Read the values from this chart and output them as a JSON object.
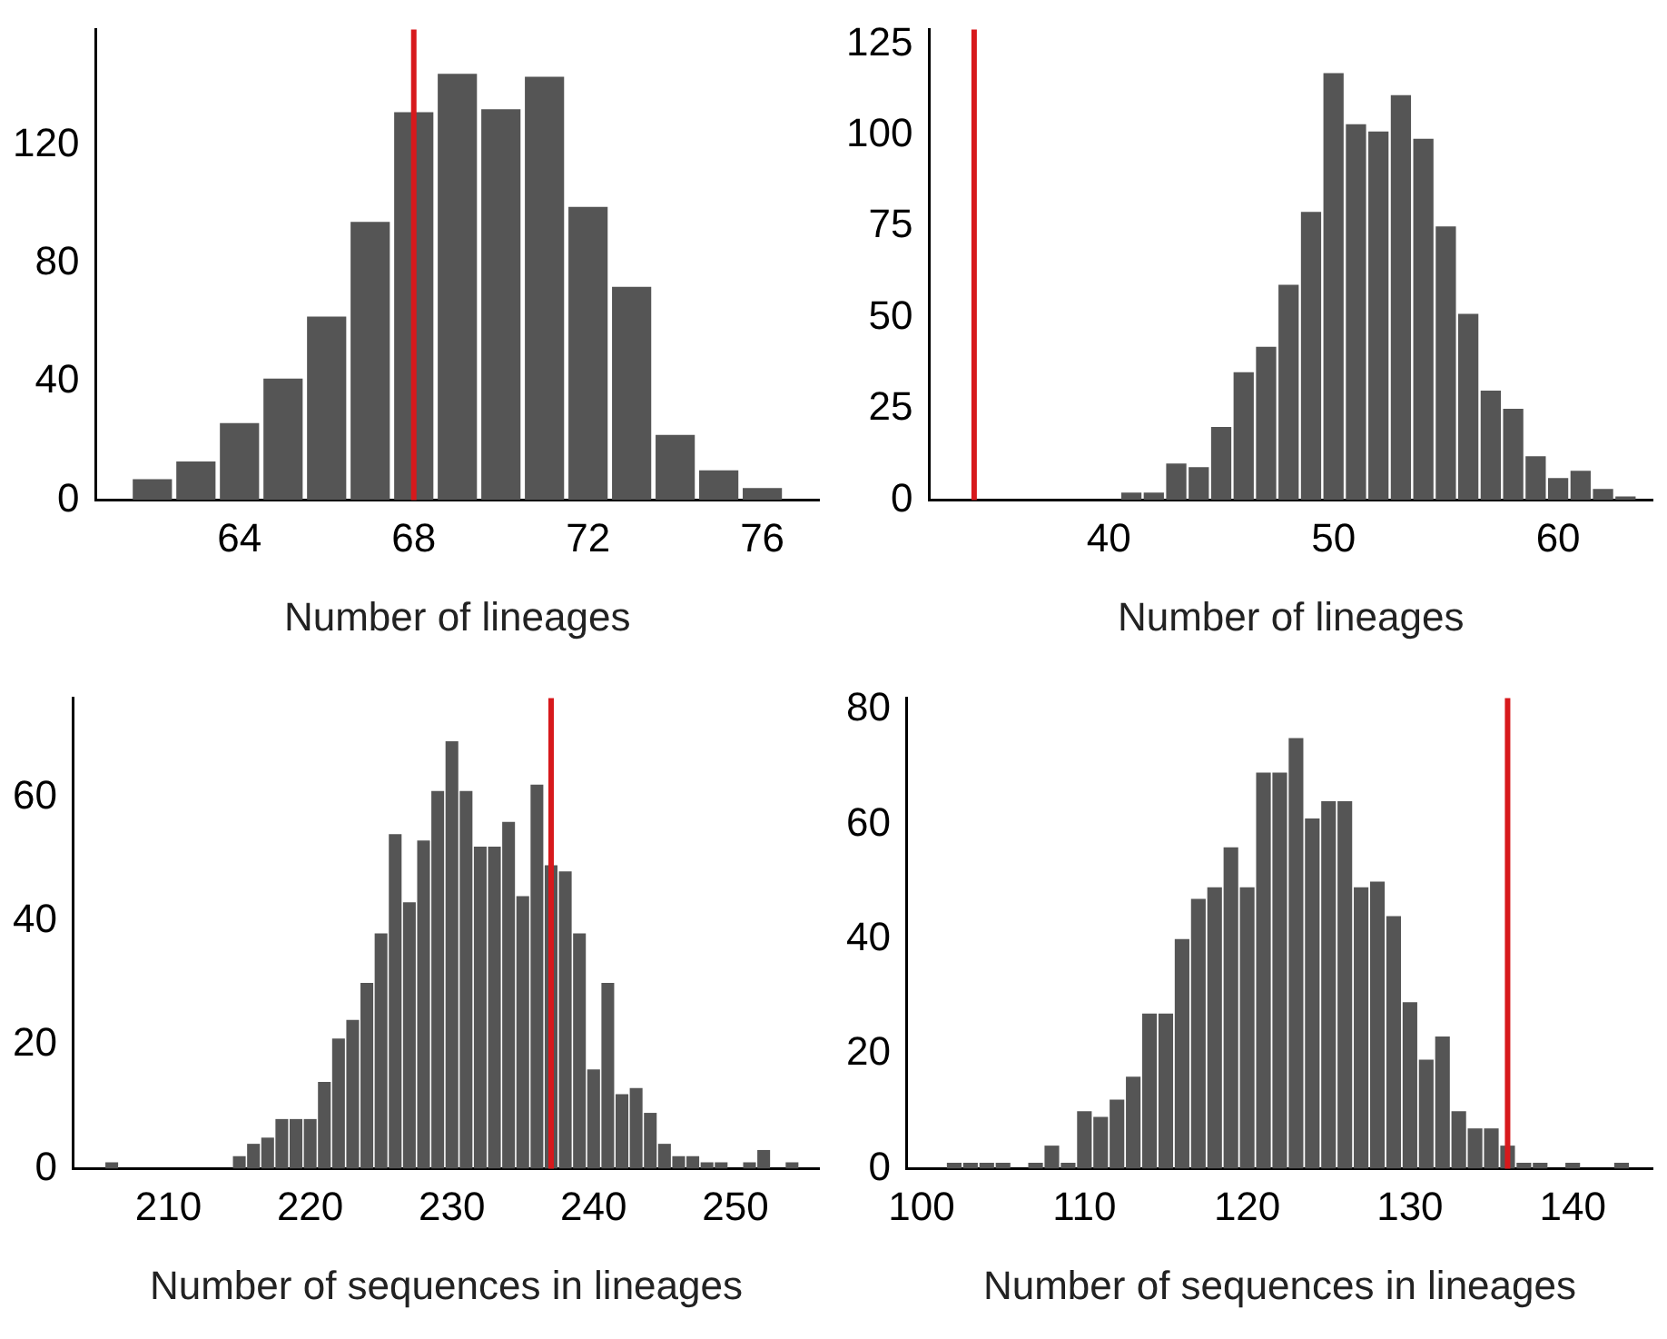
{
  "chart_data": [
    {
      "type": "histogram",
      "xlabel": "Number of lineages",
      "color": "#555555",
      "bins": [
        61.5,
        62.5,
        63.5,
        64.5,
        65.5,
        66.5,
        67.5,
        68.5,
        69.5,
        70.5,
        71.5,
        72.5,
        73.5,
        74.5,
        75.5,
        76.5
      ],
      "values": [
        7,
        13,
        26,
        41,
        62,
        94,
        131,
        144,
        132,
        143,
        99,
        72,
        22,
        10,
        4
      ],
      "xlim": [
        60.7,
        77.3
      ],
      "xticks": [
        64,
        68,
        72,
        76
      ],
      "ylim": [
        0,
        159
      ],
      "yticks": [
        0,
        40,
        80,
        120
      ],
      "ref_lines": [
        {
          "axis": "x",
          "value": 68,
          "color": "#d7191c"
        }
      ]
    },
    {
      "type": "histogram",
      "xlabel": "Number of lineages",
      "color": "#555555",
      "bins": [
        40.5,
        41.5,
        42.5,
        43.5,
        44.5,
        45.5,
        46.5,
        47.5,
        48.5,
        49.5,
        50.5,
        51.5,
        52.5,
        53.5,
        54.5,
        55.5,
        56.5,
        57.5,
        58.5,
        59.5,
        60.5,
        61.5,
        62.5,
        63.5
      ],
      "values": [
        2,
        2,
        10,
        9,
        20,
        35,
        42,
        59,
        79,
        117,
        103,
        101,
        111,
        99,
        75,
        51,
        30,
        25,
        12,
        6,
        8,
        3,
        1
      ],
      "xlim": [
        32,
        64.2
      ],
      "xticks": [
        40,
        50,
        60
      ],
      "ylim": [
        0,
        129
      ],
      "yticks": [
        0,
        25,
        50,
        75,
        100,
        125
      ],
      "ref_lines": [
        {
          "axis": "x",
          "value": 34,
          "color": "#d7191c"
        }
      ]
    },
    {
      "type": "histogram",
      "xlabel": "Number of sequences in lineages",
      "color": "#555555",
      "bins": [
        205.5,
        206.5,
        207.5,
        208.5,
        209.5,
        210.5,
        211.5,
        212.5,
        213.5,
        214.5,
        215.5,
        216.5,
        217.5,
        218.5,
        219.5,
        220.5,
        221.5,
        222.5,
        223.5,
        224.5,
        225.5,
        226.5,
        227.5,
        228.5,
        229.5,
        230.5,
        231.5,
        232.5,
        233.5,
        234.5,
        235.5,
        236.5,
        237.5,
        238.5,
        239.5,
        240.5,
        241.5,
        242.5,
        243.5,
        244.5,
        245.5,
        246.5,
        247.5,
        248.5,
        249.5,
        250.5,
        251.5,
        252.5,
        253.5,
        254.5
      ],
      "values": [
        1,
        0,
        0,
        0,
        0,
        0,
        0,
        0,
        0,
        2,
        4,
        5,
        8,
        8,
        8,
        14,
        21,
        24,
        30,
        38,
        54,
        43,
        53,
        61,
        69,
        61,
        52,
        52,
        56,
        44,
        62,
        49,
        48,
        38,
        16,
        30,
        12,
        13,
        9,
        4,
        2,
        2,
        1,
        1,
        0,
        1,
        3,
        0,
        1
      ],
      "xlim": [
        203.3,
        255.9
      ],
      "xticks": [
        210,
        220,
        230,
        240,
        250
      ],
      "ylim": [
        0,
        76
      ],
      "yticks": [
        0,
        20,
        40,
        60
      ],
      "ref_lines": [
        {
          "axis": "x",
          "value": 237,
          "color": "#d7191c"
        }
      ]
    },
    {
      "type": "histogram",
      "xlabel": "Number of sequences in lineages",
      "color": "#555555",
      "bins": [
        101.5,
        102.5,
        103.5,
        104.5,
        105.5,
        106.5,
        107.5,
        108.5,
        109.5,
        110.5,
        111.5,
        112.5,
        113.5,
        114.5,
        115.5,
        116.5,
        117.5,
        118.5,
        119.5,
        120.5,
        121.5,
        122.5,
        123.5,
        124.5,
        125.5,
        126.5,
        127.5,
        128.5,
        129.5,
        130.5,
        131.5,
        132.5,
        133.5,
        134.5,
        135.5,
        136.5,
        137.5,
        138.5,
        139.5,
        140.5,
        141.5,
        142.5,
        143.5
      ],
      "values": [
        1,
        1,
        1,
        1,
        0,
        1,
        4,
        1,
        10,
        9,
        12,
        16,
        27,
        27,
        40,
        47,
        49,
        56,
        49,
        69,
        69,
        75,
        61,
        64,
        64,
        49,
        50,
        44,
        29,
        19,
        23,
        10,
        7,
        7,
        4,
        1,
        1,
        0,
        1,
        0,
        0,
        1
      ],
      "xlim": [
        99.1,
        144.9
      ],
      "xticks": [
        100,
        110,
        120,
        130,
        140
      ],
      "ylim": [
        0,
        82
      ],
      "yticks": [
        0,
        20,
        40,
        60,
        80
      ],
      "ref_lines": [
        {
          "axis": "x",
          "value": 136,
          "color": "#d7191c"
        }
      ]
    }
  ]
}
